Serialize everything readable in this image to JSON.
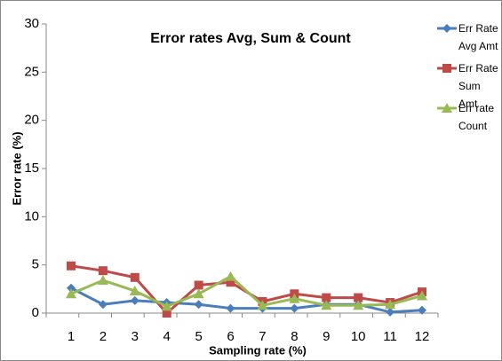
{
  "chart_data": {
    "type": "line",
    "title": "Error rates Avg, Sum & Count",
    "xlabel": "Sampling rate (%)",
    "ylabel": "Error rate (%)",
    "categories": [
      "1",
      "2",
      "3",
      "4",
      "5",
      "6",
      "7",
      "8",
      "9",
      "10",
      "11",
      "12"
    ],
    "series": [
      {
        "name": "Err Rate Avg Amt",
        "color": "#4a7ebb",
        "marker": "diamond",
        "values": [
          2.6,
          0.9,
          1.3,
          1.1,
          0.9,
          0.5,
          0.5,
          0.5,
          0.9,
          0.9,
          0.1,
          0.3
        ]
      },
      {
        "name": "Err Rate Sum Amt",
        "color": "#be4b48",
        "marker": "square",
        "values": [
          4.9,
          4.4,
          3.7,
          0.0,
          2.9,
          3.2,
          1.2,
          2.0,
          1.6,
          1.6,
          1.1,
          2.2
        ]
      },
      {
        "name": "Err rate Count",
        "color": "#98b954",
        "marker": "triangle",
        "values": [
          2.0,
          3.4,
          2.3,
          0.7,
          2.0,
          3.8,
          0.8,
          1.5,
          0.8,
          0.8,
          0.9,
          1.8
        ]
      }
    ],
    "ylim": [
      0,
      30
    ],
    "yticks": [
      0,
      5,
      10,
      15,
      20,
      25,
      30
    ],
    "grid": false,
    "legend": "right"
  }
}
